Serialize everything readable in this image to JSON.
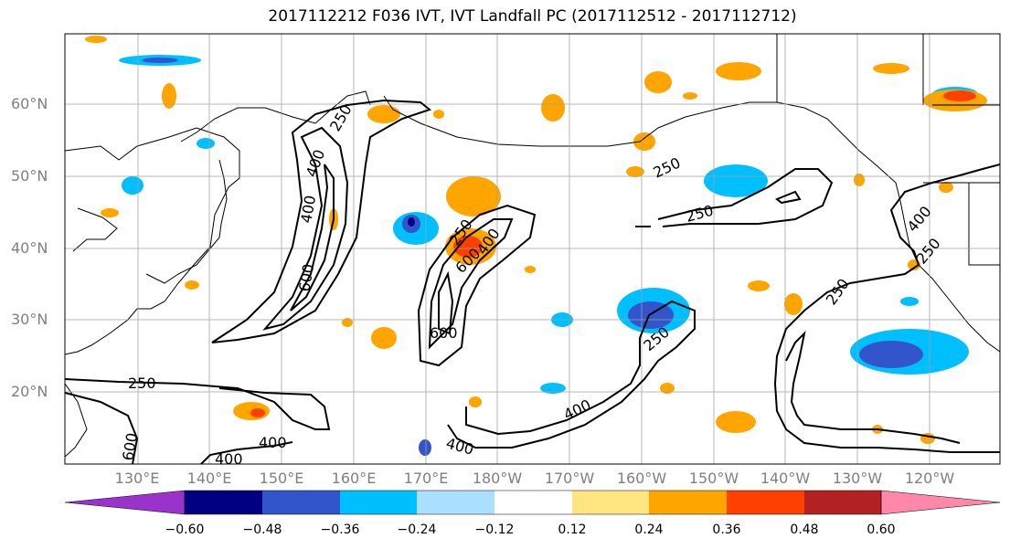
{
  "title": "2017112212 F036 IVT, IVT Landfall PC (2017112512 - 2017112712)",
  "latitude_labels": [
    "60°N",
    "50°N",
    "40°N",
    "30°N",
    "20°N"
  ],
  "longitude_labels": [
    "130°E",
    "140°E",
    "150°E",
    "160°E",
    "170°E",
    "180°W",
    "170°W",
    "160°W",
    "150°W",
    "140°W",
    "130°W",
    "120°W"
  ],
  "contour_labels": [
    "250",
    "400",
    "600"
  ],
  "colorbar": {
    "colors": [
      "#9933cc",
      "#000080",
      "#3355cc",
      "#00bfff",
      "#aadfff",
      "#ffffff",
      "#ffe680",
      "#ffa500",
      "#ff4000",
      "#b22222",
      "#ff88aa"
    ],
    "tick_labels": [
      "−0.60",
      "−0.48",
      "−0.36",
      "−0.24",
      "−0.12",
      "0.12",
      "0.24",
      "0.36",
      "0.48",
      "0.60"
    ]
  },
  "colors": {
    "land_outline": "#000000",
    "grid": "#a0a0a0",
    "ivt_contour": "#000000"
  }
}
